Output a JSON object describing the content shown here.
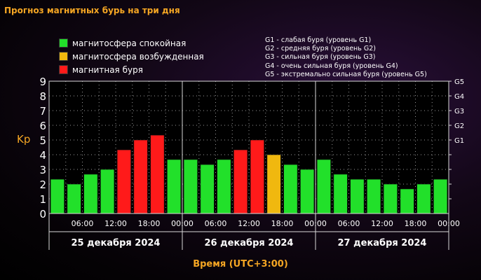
{
  "title": "Прогноз магнитных бурь на три дня",
  "legend": [
    {
      "label": "магнитосфера спокойная",
      "color": "#22e02a"
    },
    {
      "label": "магнитосфера возбужденная",
      "color": "#f0b80f"
    },
    {
      "label": "магнитная буря",
      "color": "#ff1a1a"
    }
  ],
  "g_legend": [
    "G1 - слабая буря (уровень G1)",
    "G2 - средняя буря (уровень G2)",
    "G3 - сильная буря (уровень G3)",
    "G4 - очень сильная буря (уровень G4)",
    "G5 - экстремально сильная буря (уровень G5)"
  ],
  "chart_data": {
    "type": "bar",
    "ylabel": "Kp",
    "xlabel": "Время (UTC+3:00)",
    "ylim": [
      0,
      9
    ],
    "yticks": [
      "0",
      "1",
      "2",
      "3",
      "4",
      "5",
      "6",
      "7",
      "8",
      "9"
    ],
    "g_levels": [
      {
        "label": "G1",
        "kp": 5
      },
      {
        "label": "G2",
        "kp": 6
      },
      {
        "label": "G3",
        "kp": 7
      },
      {
        "label": "G4",
        "kp": 8
      },
      {
        "label": "G5",
        "kp": 9
      }
    ],
    "time_ticks": [
      "06:00",
      "12:00",
      "18:00",
      "00:00",
      "06:00",
      "12:00",
      "18:00",
      "00:00",
      "06:00",
      "12:00",
      "18:00",
      "00:00"
    ],
    "days": [
      "25 декабря 2024",
      "26 декабря 2024",
      "27 декабря 2024"
    ],
    "colors": {
      "quiet": "#22e02a",
      "active": "#f0b80f",
      "storm": "#ff1a1a"
    },
    "values": [
      2.33,
      2.0,
      2.67,
      3.0,
      4.33,
      5.0,
      5.33,
      3.67,
      3.67,
      3.33,
      3.67,
      4.33,
      5.0,
      4.0,
      3.33,
      3.0,
      3.67,
      2.67,
      2.33,
      2.33,
      2.0,
      1.67,
      2.0,
      2.33
    ],
    "status": [
      "quiet",
      "quiet",
      "quiet",
      "quiet",
      "storm",
      "storm",
      "storm",
      "quiet",
      "quiet",
      "quiet",
      "quiet",
      "storm",
      "storm",
      "active",
      "quiet",
      "quiet",
      "quiet",
      "quiet",
      "quiet",
      "quiet",
      "quiet",
      "quiet",
      "quiet",
      "quiet"
    ]
  }
}
